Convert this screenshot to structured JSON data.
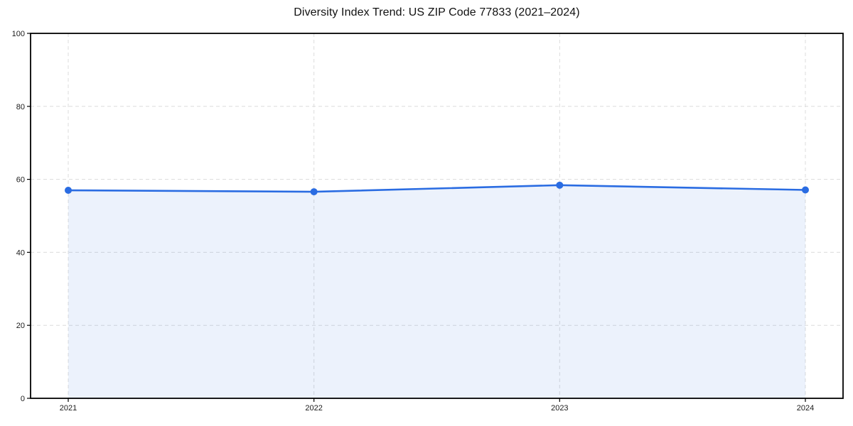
{
  "chart_data": {
    "type": "line",
    "title": "Diversity Index Trend: US ZIP Code 77833 (2021–2024)",
    "x": [
      "2021",
      "2022",
      "2023",
      "2024"
    ],
    "series": [
      {
        "name": "Diversity Index",
        "values": [
          57.0,
          56.6,
          58.4,
          57.1
        ]
      }
    ],
    "xlabel": "",
    "ylabel": "",
    "ylim": [
      0,
      100
    ],
    "yticks": [
      0,
      20,
      40,
      60,
      80,
      100
    ],
    "grid": "dashed-both-axes",
    "legend": "none",
    "area_fill": true,
    "marker": "circle",
    "colors": {
      "line": "#2a6ce2",
      "fill": "#2a6ce2",
      "fill_opacity": 0.09,
      "grid": "#dcdcdc",
      "spine": "#000000",
      "tick_text": "#1a1a1a",
      "title_text": "#111111",
      "background": "#ffffff"
    }
  }
}
